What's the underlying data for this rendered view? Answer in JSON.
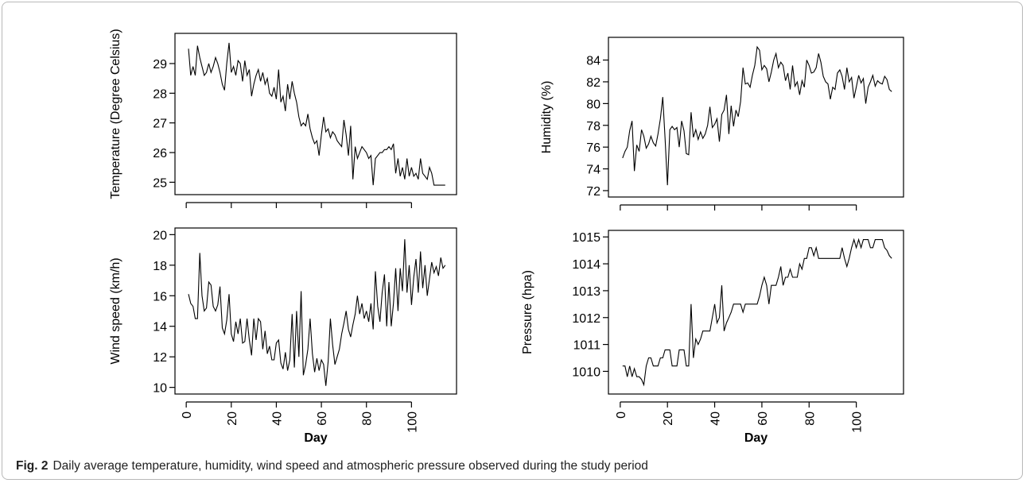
{
  "caption": {
    "label": "Fig. 2",
    "text": "Daily average temperature, humidity, wind speed and atmospheric pressure observed during the study period"
  },
  "chart_data": [
    {
      "type": "line",
      "xlabel": "",
      "ylabel": "Temperature (Degree Celsius)",
      "xlim": [
        0,
        115
      ],
      "ylim": [
        24.8,
        29.8
      ],
      "xticks": [
        0,
        20,
        40,
        60,
        80,
        100
      ],
      "xtick_labels": [
        "",
        "",
        "",
        "",
        "",
        ""
      ],
      "yticks": [
        25,
        26,
        27,
        28,
        29
      ],
      "ytick_labels": [
        "25",
        "26",
        "27",
        "28",
        "29"
      ],
      "series": [
        {
          "x": [
            1,
            2,
            3,
            4,
            5,
            6,
            7,
            8,
            9,
            10,
            11,
            12,
            13,
            14,
            15,
            16,
            17,
            18,
            19,
            20,
            21,
            22,
            23,
            24,
            25,
            26,
            27,
            28,
            29,
            30,
            31,
            32,
            33,
            34,
            35,
            36,
            37,
            38,
            39,
            40,
            41,
            42,
            43,
            44,
            45,
            46,
            47,
            48,
            49,
            50,
            51,
            52,
            53,
            54,
            55,
            56,
            57,
            58,
            59,
            60,
            61,
            62,
            63,
            64,
            65,
            66,
            67,
            68,
            69,
            70,
            71,
            72,
            73,
            74,
            75,
            76,
            77,
            78,
            79,
            80,
            81,
            82,
            83,
            84,
            85,
            86,
            87,
            88,
            89,
            90,
            91,
            92,
            93,
            94,
            95,
            96,
            97,
            98,
            99,
            100,
            101,
            102,
            103,
            104,
            105,
            106,
            107,
            108,
            109,
            110,
            111,
            112,
            113,
            114,
            115
          ],
          "values": [
            29.5,
            28.6,
            28.9,
            28.6,
            29.6,
            29.2,
            28.9,
            28.6,
            28.7,
            29.0,
            28.7,
            28.9,
            29.2,
            29.0,
            28.7,
            28.3,
            28.1,
            29.0,
            29.7,
            28.7,
            28.9,
            28.6,
            29.1,
            29.0,
            28.4,
            29.1,
            28.6,
            28.8,
            27.9,
            28.3,
            28.6,
            28.8,
            28.4,
            28.7,
            28.3,
            28.5,
            28.0,
            27.9,
            28.2,
            27.8,
            28.8,
            27.7,
            27.9,
            27.4,
            28.3,
            27.8,
            28.4,
            28.0,
            27.7,
            27.2,
            26.9,
            27.0,
            26.9,
            27.3,
            26.8,
            26.5,
            26.3,
            26.4,
            25.9,
            26.6,
            27.2,
            26.7,
            26.8,
            26.5,
            26.7,
            26.6,
            26.4,
            26.3,
            26.2,
            27.1,
            26.6,
            25.9,
            26.9,
            25.1,
            26.2,
            25.8,
            26.0,
            26.2,
            26.1,
            26.0,
            25.8,
            25.9,
            24.9,
            25.8,
            25.9,
            26.0,
            26.0,
            26.1,
            26.1,
            26.2,
            26.1,
            26.3,
            25.3,
            25.8,
            25.2,
            25.5,
            25.1,
            25.8,
            25.2,
            25.5,
            25.2,
            25.3,
            25.1,
            25.8,
            25.3,
            25.2,
            25.1,
            25.5,
            25.3,
            24.9,
            24.9,
            24.9,
            24.9,
            24.9,
            24.9
          ]
        }
      ]
    },
    {
      "type": "line",
      "xlabel": "",
      "ylabel": "Humidity (%)",
      "xlim": [
        0,
        115
      ],
      "ylim": [
        72,
        85.5
      ],
      "xticks": [
        0,
        20,
        40,
        60,
        80,
        100
      ],
      "xtick_labels": [
        "",
        "",
        "",
        "",
        "",
        ""
      ],
      "yticks": [
        72,
        74,
        76,
        78,
        80,
        82,
        84
      ],
      "ytick_labels": [
        "72",
        "74",
        "76",
        "78",
        "80",
        "82",
        "84"
      ],
      "series": [
        {
          "x": [
            1,
            2,
            3,
            4,
            5,
            6,
            7,
            8,
            9,
            10,
            11,
            12,
            13,
            14,
            15,
            16,
            17,
            18,
            19,
            20,
            21,
            22,
            23,
            24,
            25,
            26,
            27,
            28,
            29,
            30,
            31,
            32,
            33,
            34,
            35,
            36,
            37,
            38,
            39,
            40,
            41,
            42,
            43,
            44,
            45,
            46,
            47,
            48,
            49,
            50,
            51,
            52,
            53,
            54,
            55,
            56,
            57,
            58,
            59,
            60,
            61,
            62,
            63,
            64,
            65,
            66,
            67,
            68,
            69,
            70,
            71,
            72,
            73,
            74,
            75,
            76,
            77,
            78,
            79,
            80,
            81,
            82,
            83,
            84,
            85,
            86,
            87,
            88,
            89,
            90,
            91,
            92,
            93,
            94,
            95,
            96,
            97,
            98,
            99,
            100,
            101,
            102,
            103,
            104,
            105,
            106,
            107,
            108,
            109,
            110,
            111,
            112,
            113,
            114,
            115
          ],
          "values": [
            75.0,
            75.6,
            76.0,
            77.5,
            78.4,
            73.8,
            76.2,
            75.6,
            77.6,
            77.0,
            75.9,
            76.3,
            77.0,
            76.4,
            76.1,
            77.2,
            78.6,
            80.6,
            76.8,
            72.5,
            77.6,
            77.9,
            77.6,
            77.8,
            76.0,
            78.4,
            77.5,
            75.4,
            75.3,
            79.2,
            76.9,
            77.6,
            76.7,
            77.4,
            76.8,
            77.2,
            78.0,
            79.7,
            77.8,
            78.1,
            78.6,
            76.5,
            79.0,
            79.4,
            80.8,
            77.2,
            79.8,
            77.9,
            79.4,
            78.8,
            80.2,
            83.3,
            81.8,
            81.9,
            81.5,
            82.6,
            83.5,
            85.2,
            84.9,
            83.1,
            83.5,
            83.2,
            82.0,
            82.9,
            84.0,
            84.6,
            83.3,
            83.8,
            83.5,
            82.1,
            82.8,
            81.3,
            83.5,
            81.6,
            82.0,
            80.8,
            82.1,
            81.5,
            84.0,
            83.5,
            82.8,
            82.9,
            83.3,
            84.6,
            83.8,
            82.5,
            82.0,
            81.8,
            80.4,
            81.5,
            81.3,
            82.8,
            83.1,
            82.5,
            81.3,
            83.3,
            82.0,
            82.4,
            80.5,
            81.5,
            82.6,
            81.9,
            82.3,
            80.0,
            81.5,
            82.0,
            82.6,
            81.6,
            82.1,
            81.9,
            81.8,
            82.5,
            82.2,
            81.3,
            81.1
          ]
        }
      ]
    },
    {
      "type": "line",
      "xlabel": "Day",
      "ylabel": "Wind speed (km/h)",
      "xlim": [
        0,
        115
      ],
      "ylim": [
        10,
        20
      ],
      "xticks": [
        0,
        20,
        40,
        60,
        80,
        100
      ],
      "xtick_labels": [
        "0",
        "20",
        "40",
        "60",
        "80",
        "100"
      ],
      "yticks": [
        10,
        12,
        14,
        16,
        18,
        20
      ],
      "ytick_labels": [
        "10",
        "12",
        "14",
        "16",
        "18",
        "20"
      ],
      "series": [
        {
          "x": [
            1,
            2,
            3,
            4,
            5,
            6,
            7,
            8,
            9,
            10,
            11,
            12,
            13,
            14,
            15,
            16,
            17,
            18,
            19,
            20,
            21,
            22,
            23,
            24,
            25,
            26,
            27,
            28,
            29,
            30,
            31,
            32,
            33,
            34,
            35,
            36,
            37,
            38,
            39,
            40,
            41,
            42,
            43,
            44,
            45,
            46,
            47,
            48,
            49,
            50,
            51,
            52,
            53,
            54,
            55,
            56,
            57,
            58,
            59,
            60,
            61,
            62,
            63,
            64,
            65,
            66,
            67,
            68,
            69,
            70,
            71,
            72,
            73,
            74,
            75,
            76,
            77,
            78,
            79,
            80,
            81,
            82,
            83,
            84,
            85,
            86,
            87,
            88,
            89,
            90,
            91,
            92,
            93,
            94,
            95,
            96,
            97,
            98,
            99,
            100,
            101,
            102,
            103,
            104,
            105,
            106,
            107,
            108,
            109,
            110,
            111,
            112,
            113,
            114,
            115
          ],
          "values": [
            16.1,
            15.5,
            15.3,
            14.5,
            14.5,
            18.8,
            16.0,
            15.0,
            15.2,
            16.9,
            16.7,
            15.3,
            15.0,
            15.4,
            16.6,
            13.9,
            13.5,
            14.4,
            16.1,
            13.5,
            13.0,
            14.3,
            13.5,
            14.5,
            12.9,
            13.0,
            14.5,
            13.1,
            12.1,
            14.5,
            13.1,
            14.5,
            14.3,
            12.5,
            13.7,
            12.2,
            12.7,
            11.8,
            11.8,
            12.9,
            13.1,
            11.6,
            11.2,
            12.3,
            11.1,
            11.8,
            14.8,
            11.3,
            15.0,
            12.0,
            16.3,
            10.8,
            11.5,
            12.5,
            14.5,
            12.2,
            11.0,
            11.9,
            11.1,
            11.8,
            11.5,
            10.1,
            11.7,
            14.5,
            12.8,
            11.5,
            12.0,
            12.5,
            13.5,
            14.2,
            15.0,
            13.8,
            13.3,
            14.1,
            14.8,
            16.0,
            14.8,
            15.5,
            14.5,
            15.0,
            14.3,
            15.5,
            13.8,
            17.6,
            15.3,
            14.3,
            16.2,
            17.4,
            14.0,
            16.9,
            14.0,
            15.5,
            17.8,
            15.0,
            17.8,
            16.3,
            19.7,
            16.2,
            18.0,
            15.4,
            17.2,
            18.4,
            16.2,
            18.9,
            16.5,
            18.0,
            16.0,
            17.1,
            18.2,
            17.5,
            17.9,
            17.3,
            18.5,
            17.8,
            18.0
          ]
        }
      ]
    },
    {
      "type": "line",
      "xlabel": "Day",
      "ylabel": "Pressure (hpa)",
      "xlim": [
        0,
        115
      ],
      "ylim": [
        1009.4,
        1015
      ],
      "xticks": [
        0,
        20,
        40,
        60,
        80,
        100
      ],
      "xtick_labels": [
        "0",
        "20",
        "40",
        "60",
        "80",
        "100"
      ],
      "yticks": [
        1010,
        1011,
        1012,
        1013,
        1014,
        1015
      ],
      "ytick_labels": [
        "1010",
        "1011",
        "1012",
        "1013",
        "1014",
        "1015"
      ],
      "series": [
        {
          "x": [
            1,
            2,
            3,
            4,
            5,
            6,
            7,
            8,
            9,
            10,
            11,
            12,
            13,
            14,
            15,
            16,
            17,
            18,
            19,
            20,
            21,
            22,
            23,
            24,
            25,
            26,
            27,
            28,
            29,
            30,
            31,
            32,
            33,
            34,
            35,
            36,
            37,
            38,
            39,
            40,
            41,
            42,
            43,
            44,
            45,
            46,
            47,
            48,
            49,
            50,
            51,
            52,
            53,
            54,
            55,
            56,
            57,
            58,
            59,
            60,
            61,
            62,
            63,
            64,
            65,
            66,
            67,
            68,
            69,
            70,
            71,
            72,
            73,
            74,
            75,
            76,
            77,
            78,
            79,
            80,
            81,
            82,
            83,
            84,
            85,
            86,
            87,
            88,
            89,
            90,
            91,
            92,
            93,
            94,
            95,
            96,
            97,
            98,
            99,
            100,
            101,
            102,
            103,
            104,
            105,
            106,
            107,
            108,
            109,
            110,
            111,
            112,
            113,
            114,
            115
          ],
          "values": [
            1010.2,
            1010.2,
            1009.8,
            1010.2,
            1009.8,
            1010.1,
            1009.8,
            1009.8,
            1009.7,
            1009.5,
            1010.2,
            1010.5,
            1010.5,
            1010.2,
            1010.2,
            1010.2,
            1010.5,
            1010.5,
            1010.8,
            1010.8,
            1010.8,
            1010.2,
            1010.2,
            1010.2,
            1010.8,
            1010.8,
            1010.8,
            1010.2,
            1010.2,
            1012.5,
            1010.5,
            1011.2,
            1011.0,
            1011.2,
            1011.5,
            1011.5,
            1011.5,
            1011.5,
            1012.0,
            1012.5,
            1011.8,
            1012.0,
            1013.2,
            1011.5,
            1011.8,
            1012.0,
            1012.2,
            1012.5,
            1012.5,
            1012.5,
            1012.5,
            1012.2,
            1012.5,
            1012.5,
            1012.5,
            1012.5,
            1012.5,
            1012.5,
            1012.8,
            1013.2,
            1013.5,
            1013.2,
            1012.5,
            1013.2,
            1013.2,
            1013.2,
            1013.5,
            1013.9,
            1013.2,
            1013.5,
            1013.5,
            1013.8,
            1013.5,
            1013.5,
            1013.5,
            1014.0,
            1013.8,
            1014.2,
            1014.2,
            1014.6,
            1014.6,
            1014.3,
            1014.6,
            1014.2,
            1014.2,
            1014.2,
            1014.2,
            1014.2,
            1014.2,
            1014.2,
            1014.2,
            1014.2,
            1014.2,
            1014.6,
            1014.2,
            1013.9,
            1014.2,
            1014.6,
            1014.9,
            1014.6,
            1014.9,
            1014.6,
            1014.9,
            1014.9,
            1014.9,
            1014.6,
            1014.6,
            1014.9,
            1014.9,
            1014.9,
            1014.9,
            1014.6,
            1014.5,
            1014.3,
            1014.2
          ]
        }
      ]
    }
  ]
}
